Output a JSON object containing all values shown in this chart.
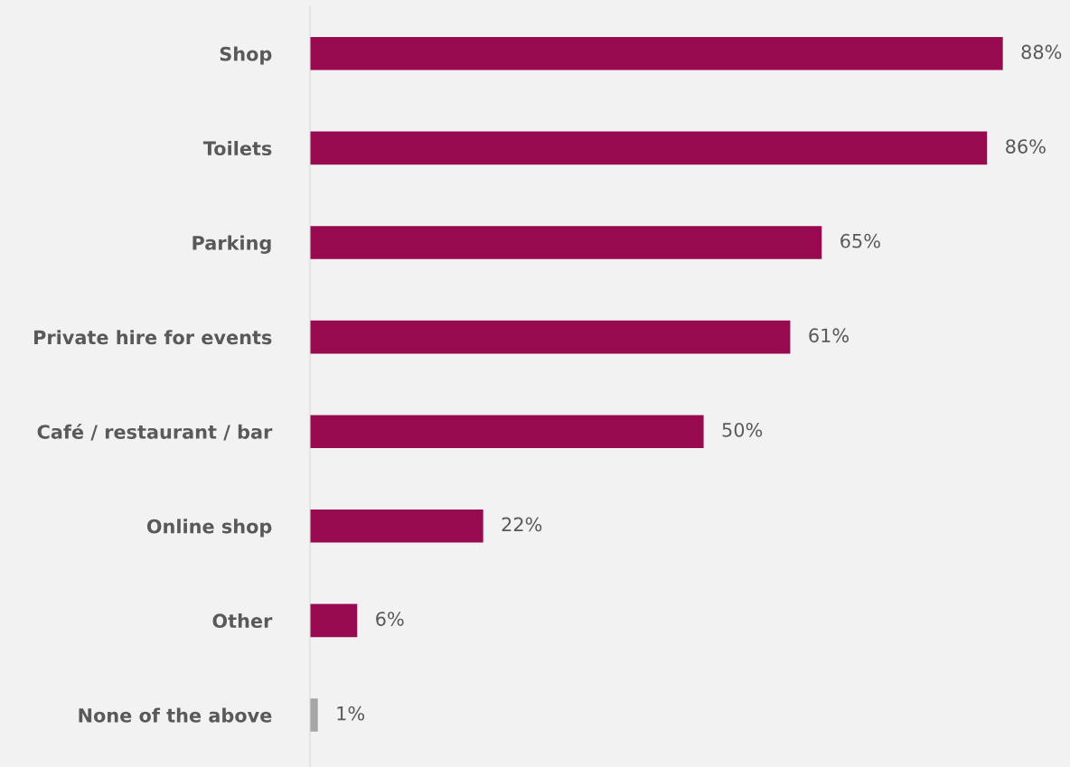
{
  "chart_data": {
    "type": "bar",
    "orientation": "horizontal",
    "categories": [
      "Shop",
      "Toilets",
      "Parking",
      "Private hire for events",
      "Café / restaurant / bar",
      "Online shop",
      "Other",
      "None of the above"
    ],
    "values": [
      88,
      86,
      65,
      61,
      50,
      22,
      6,
      1
    ],
    "colors": [
      "#970a4f",
      "#970a4f",
      "#970a4f",
      "#970a4f",
      "#970a4f",
      "#970a4f",
      "#970a4f",
      "#a6a6a6"
    ],
    "value_labels": [
      "88%",
      "86%",
      "65%",
      "61%",
      "50%",
      "22%",
      "6%",
      "1%"
    ],
    "tick_labels": "y",
    "grid": false,
    "legend": false
  }
}
